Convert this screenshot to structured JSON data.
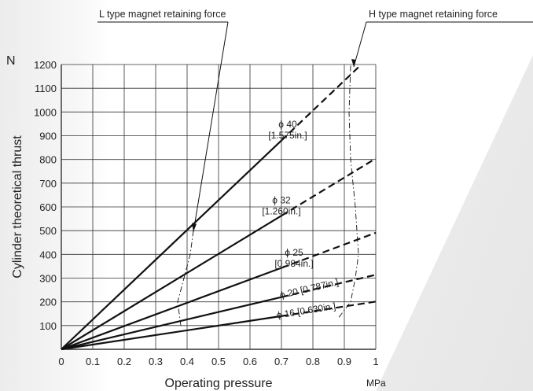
{
  "chart_data": {
    "type": "line",
    "title": "",
    "xlabel": "Operating pressure",
    "ylabel": "Cylinder theoretical thrust",
    "x_unit": "MPa",
    "y_unit": "N",
    "xlim": [
      0,
      1
    ],
    "ylim": [
      0,
      1200
    ],
    "x_ticks": [
      "0",
      "0.1",
      "0.2",
      "0.3",
      "0.4",
      "0.5",
      "0.6",
      "0.7",
      "0.8",
      "0.9",
      "1"
    ],
    "y_ticks": [
      "100",
      "200",
      "300",
      "400",
      "500",
      "600",
      "700",
      "800",
      "900",
      "1000",
      "1100",
      "1200"
    ],
    "grid": true,
    "series": [
      {
        "name": "ϕ 40 [1.575in.]",
        "label_lines": [
          "ϕ 40",
          "[1.575in.]"
        ],
        "solid": [
          [
            0,
            0
          ],
          [
            0.7,
            880
          ]
        ],
        "dashed": [
          [
            0.7,
            880
          ],
          [
            0.95,
            1195
          ]
        ]
      },
      {
        "name": "ϕ 32 [1.260in.]",
        "label_lines": [
          "ϕ 32",
          "[1.260in.]"
        ],
        "solid": [
          [
            0,
            0
          ],
          [
            0.7,
            563
          ]
        ],
        "dashed": [
          [
            0.7,
            563
          ],
          [
            1.0,
            804
          ]
        ]
      },
      {
        "name": "ϕ 25 [0.984in.]",
        "label_lines": [
          "ϕ 25",
          "[0.984in.]"
        ],
        "solid": [
          [
            0,
            0
          ],
          [
            0.7,
            343
          ]
        ],
        "dashed": [
          [
            0.7,
            343
          ],
          [
            1.0,
            491
          ]
        ]
      },
      {
        "name": "ϕ 20 [0.787in.]",
        "label_lines": [
          "ϕ 20 [0.787in.]"
        ],
        "solid": [
          [
            0,
            0
          ],
          [
            0.7,
            220
          ]
        ],
        "dashed": [
          [
            0.7,
            220
          ],
          [
            1.0,
            314
          ]
        ]
      },
      {
        "name": "ϕ 16 [0.630in.]",
        "label_lines": [
          "ϕ 16 [0.630in.]"
        ],
        "solid": [
          [
            0,
            0
          ],
          [
            0.7,
            140
          ]
        ],
        "dashed": [
          [
            0.7,
            140
          ],
          [
            1.0,
            201
          ]
        ]
      }
    ],
    "annotations": [
      {
        "text": "L type magnet retaining force",
        "curve": [
          [
            0.38,
            100
          ],
          [
            0.37,
            200
          ],
          [
            0.39,
            300
          ],
          [
            0.41,
            400
          ],
          [
            0.42,
            500
          ]
        ]
      },
      {
        "text": "H type magnet retaining force",
        "curve": [
          [
            0.92,
            1195
          ],
          [
            0.915,
            1000
          ],
          [
            0.92,
            800
          ],
          [
            0.935,
            600
          ],
          [
            0.945,
            400
          ],
          [
            0.935,
            300
          ],
          [
            0.92,
            200
          ],
          [
            0.88,
            130
          ]
        ]
      }
    ]
  }
}
